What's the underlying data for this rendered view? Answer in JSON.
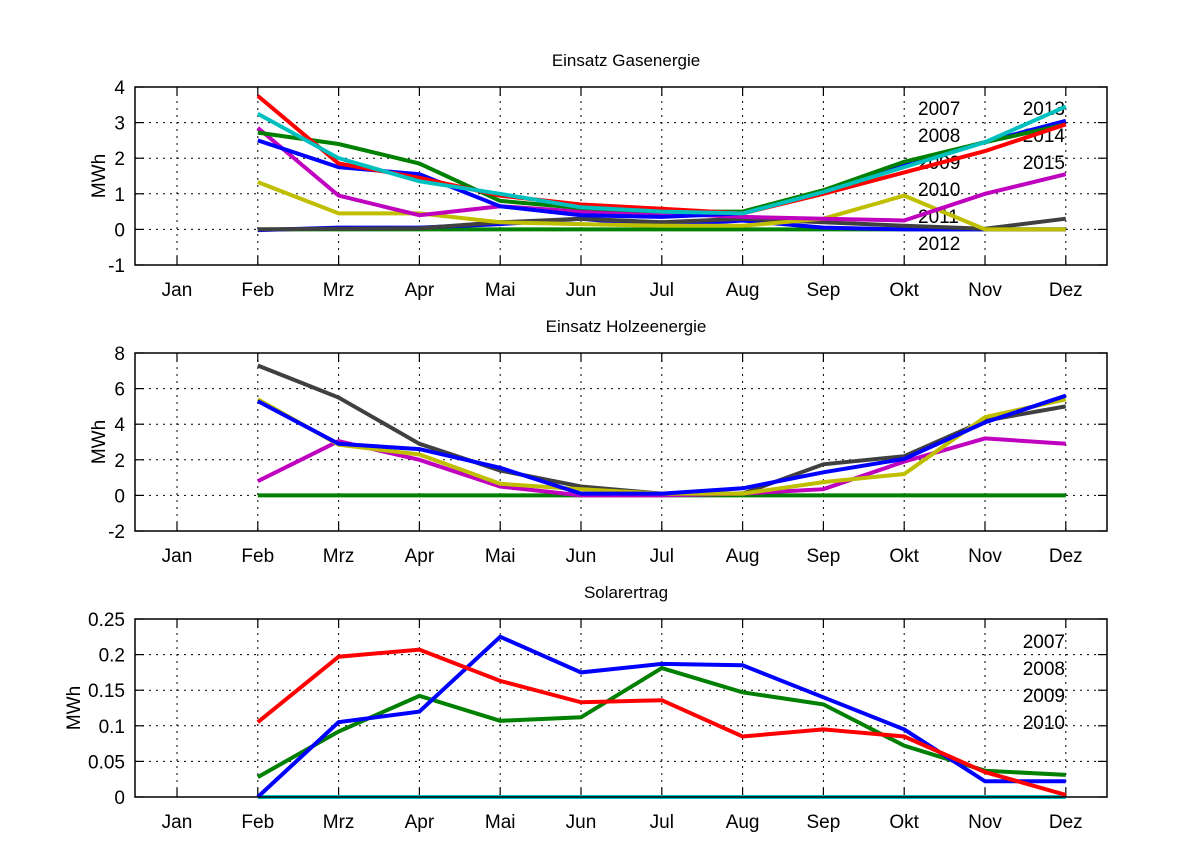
{
  "chart_data": [
    {
      "type": "line",
      "title": "Einsatz Gasenergie",
      "xlabel": "",
      "ylabel": "MWh",
      "ylim": [
        -1,
        4
      ],
      "yticks": [
        "-1",
        "0",
        "1",
        "2",
        "3",
        "4"
      ],
      "ytick_values": [
        -1,
        0,
        1,
        2,
        3,
        4
      ],
      "categories": [
        "Jan",
        "Feb",
        "Mrz",
        "Apr",
        "Mai",
        "Jun",
        "Jul",
        "Aug",
        "Sep",
        "Okt",
        "Nov",
        "Dez"
      ],
      "grid": true,
      "legend_placement": "top-right",
      "legend": {
        "left_column": [
          "2007",
          "2008",
          "2009",
          "2010",
          "2011",
          "2012"
        ],
        "right_column": [
          "2013",
          "2014",
          "2015"
        ]
      },
      "series": [
        {
          "name": "2015",
          "color": "#008000",
          "values": [
            null,
            0.0,
            0.0,
            0.0,
            0.0,
            0.0,
            0.0,
            0.0,
            0.0,
            0.0,
            0.0,
            0.0
          ]
        },
        {
          "name": "2014",
          "color": "#0000ff",
          "values": [
            null,
            -0.02,
            0.05,
            0.05,
            0.15,
            0.3,
            0.1,
            0.25,
            0.05,
            0.0,
            0.0,
            0.0
          ]
        },
        {
          "name": "2013",
          "color": "#404040",
          "values": [
            null,
            0.0,
            0.02,
            0.03,
            0.2,
            0.3,
            0.2,
            0.3,
            0.2,
            0.1,
            0.02,
            0.3
          ]
        },
        {
          "name": "2012",
          "color": "#bfbf00",
          "values": [
            null,
            1.33,
            0.45,
            0.45,
            0.2,
            0.15,
            0.1,
            0.1,
            0.3,
            0.95,
            0.0,
            0.0
          ]
        },
        {
          "name": "2011",
          "color": "#bf00bf",
          "values": [
            null,
            2.85,
            0.95,
            0.4,
            0.65,
            0.5,
            0.45,
            0.35,
            0.3,
            0.25,
            1.0,
            1.55
          ]
        },
        {
          "name": "2009",
          "color": "#0000ff",
          "values": [
            null,
            2.5,
            1.75,
            1.55,
            0.65,
            0.4,
            0.35,
            0.45,
            1.05,
            1.85,
            2.45,
            3.05
          ]
        },
        {
          "name": "2008",
          "color": "#008000",
          "values": [
            null,
            2.72,
            2.4,
            1.85,
            0.8,
            0.6,
            0.5,
            0.5,
            1.1,
            1.9,
            2.45,
            2.95
          ]
        },
        {
          "name": "2007",
          "color": "#ff0000",
          "values": [
            null,
            3.75,
            1.85,
            1.45,
            0.95,
            0.7,
            0.58,
            0.45,
            1.0,
            1.6,
            2.2,
            2.95
          ]
        },
        {
          "name": "2010",
          "color": "#00bfbf",
          "values": [
            null,
            3.25,
            2.0,
            1.35,
            1.0,
            0.62,
            0.5,
            0.45,
            1.05,
            1.75,
            2.45,
            3.45
          ]
        }
      ]
    },
    {
      "type": "line",
      "title": "Einsatz Holzeenergie",
      "xlabel": "",
      "ylabel": "MWh",
      "ylim": [
        -2,
        8
      ],
      "yticks": [
        "-2",
        "0",
        "2",
        "4",
        "6",
        "8"
      ],
      "ytick_values": [
        -2,
        0,
        2,
        4,
        6,
        8
      ],
      "categories": [
        "Jan",
        "Feb",
        "Mrz",
        "Apr",
        "Mai",
        "Jun",
        "Jul",
        "Aug",
        "Sep",
        "Okt",
        "Nov",
        "Dez"
      ],
      "grid": true,
      "series": [
        {
          "name": "series-green",
          "color": "#008000",
          "values": [
            null,
            0.0,
            0.0,
            0.0,
            0.0,
            0.0,
            0.0,
            0.0,
            0.0,
            0.0,
            0.0,
            0.0
          ]
        },
        {
          "name": "series-magenta",
          "color": "#bf00bf",
          "values": [
            null,
            0.8,
            3.05,
            2.0,
            0.5,
            0.0,
            0.0,
            0.1,
            0.35,
            1.9,
            3.2,
            2.9
          ]
        },
        {
          "name": "series-gray",
          "color": "#404040",
          "values": [
            null,
            7.3,
            5.5,
            2.9,
            1.4,
            0.5,
            0.1,
            0.1,
            1.75,
            2.2,
            4.2,
            5.0
          ]
        },
        {
          "name": "series-yellow",
          "color": "#bfbf00",
          "values": [
            null,
            5.4,
            2.85,
            2.3,
            0.65,
            0.35,
            0.1,
            0.1,
            0.75,
            1.2,
            4.4,
            5.4
          ]
        },
        {
          "name": "series-blue",
          "color": "#0000ff",
          "values": [
            null,
            5.3,
            2.9,
            2.6,
            1.55,
            0.1,
            0.1,
            0.4,
            1.3,
            2.05,
            4.1,
            5.6
          ]
        }
      ]
    },
    {
      "type": "line",
      "title": "Solarertrag",
      "xlabel": "",
      "ylabel": "MWh",
      "ylim": [
        0,
        0.25
      ],
      "yticks": [
        "0",
        "0.05",
        "0.1",
        "0.15",
        "0.2",
        "0.25"
      ],
      "ytick_values": [
        0,
        0.05,
        0.1,
        0.15,
        0.2,
        0.25
      ],
      "categories": [
        "Jan",
        "Feb",
        "Mrz",
        "Apr",
        "Mai",
        "Jun",
        "Jul",
        "Aug",
        "Sep",
        "Okt",
        "Nov",
        "Dez"
      ],
      "grid": true,
      "legend_placement": "top-right",
      "legend": {
        "left_column": [
          "2007",
          "2008",
          "2009",
          "2010"
        ],
        "right_column": []
      },
      "series": [
        {
          "name": "2010",
          "color": "#00bfbf",
          "values": [
            null,
            0.0,
            0.0,
            0.0,
            0.0,
            0.0,
            0.0,
            0.0,
            0.0,
            0.0,
            0.0,
            0.0
          ]
        },
        {
          "name": "2009",
          "color": "#008000",
          "values": [
            null,
            0.028,
            0.092,
            0.142,
            0.107,
            0.112,
            0.181,
            0.147,
            0.13,
            0.072,
            0.037,
            0.031
          ]
        },
        {
          "name": "2008",
          "color": "#0000ff",
          "values": [
            null,
            0.0,
            0.105,
            0.12,
            0.225,
            0.175,
            0.187,
            0.185,
            0.14,
            0.095,
            0.022,
            0.022
          ]
        },
        {
          "name": "2007",
          "color": "#ff0000",
          "values": [
            null,
            0.105,
            0.197,
            0.207,
            0.163,
            0.133,
            0.136,
            0.085,
            0.095,
            0.085,
            0.035,
            0.003
          ]
        }
      ]
    }
  ]
}
